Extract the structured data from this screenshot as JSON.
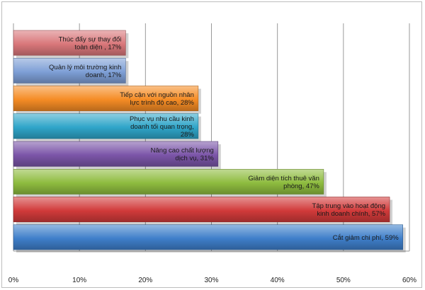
{
  "chart_data": {
    "type": "bar",
    "orientation": "horizontal",
    "title": "",
    "xlabel": "",
    "ylabel": "",
    "xlim": [
      0,
      60
    ],
    "x_ticks": [
      "0%",
      "10%",
      "20%",
      "30%",
      "40%",
      "50%",
      "60%"
    ],
    "grid": "vertical",
    "legend": "none",
    "bars": [
      {
        "label_lines": [
          "Thúc đẩy sự thay đổi",
          "toàn diện , 17%"
        ],
        "value": 17,
        "color": "#d9777a"
      },
      {
        "label_lines": [
          "Quản lý môi trường kinh",
          "doanh, 17%"
        ],
        "value": 17,
        "color": "#7e9fd6"
      },
      {
        "label_lines": [
          "Tiếp cận với nguồn nhân",
          "lực trình độ cao, 28%"
        ],
        "value": 28,
        "color": "#f58c25"
      },
      {
        "label_lines": [
          "Phục vụ nhu cầu kinh",
          "doanh tối quan trọng,",
          "28%"
        ],
        "value": 28,
        "color": "#2fa5c9"
      },
      {
        "label_lines": [
          "Nâng cao chất lượng",
          "dịch vụ, 31%"
        ],
        "value": 31,
        "color": "#7b55a8"
      },
      {
        "label_lines": [
          "Giảm diện tích thuê văn",
          "phòng, 47%"
        ],
        "value": 47,
        "color": "#8ebc3f"
      },
      {
        "label_lines": [
          "Tập trung vào hoạt động",
          "kinh doanh chính, 57%"
        ],
        "value": 57,
        "color": "#d13a3a"
      },
      {
        "label_lines": [
          "Cắt giảm chi phí, 59%"
        ],
        "value": 59,
        "color": "#3f7fca"
      }
    ]
  }
}
